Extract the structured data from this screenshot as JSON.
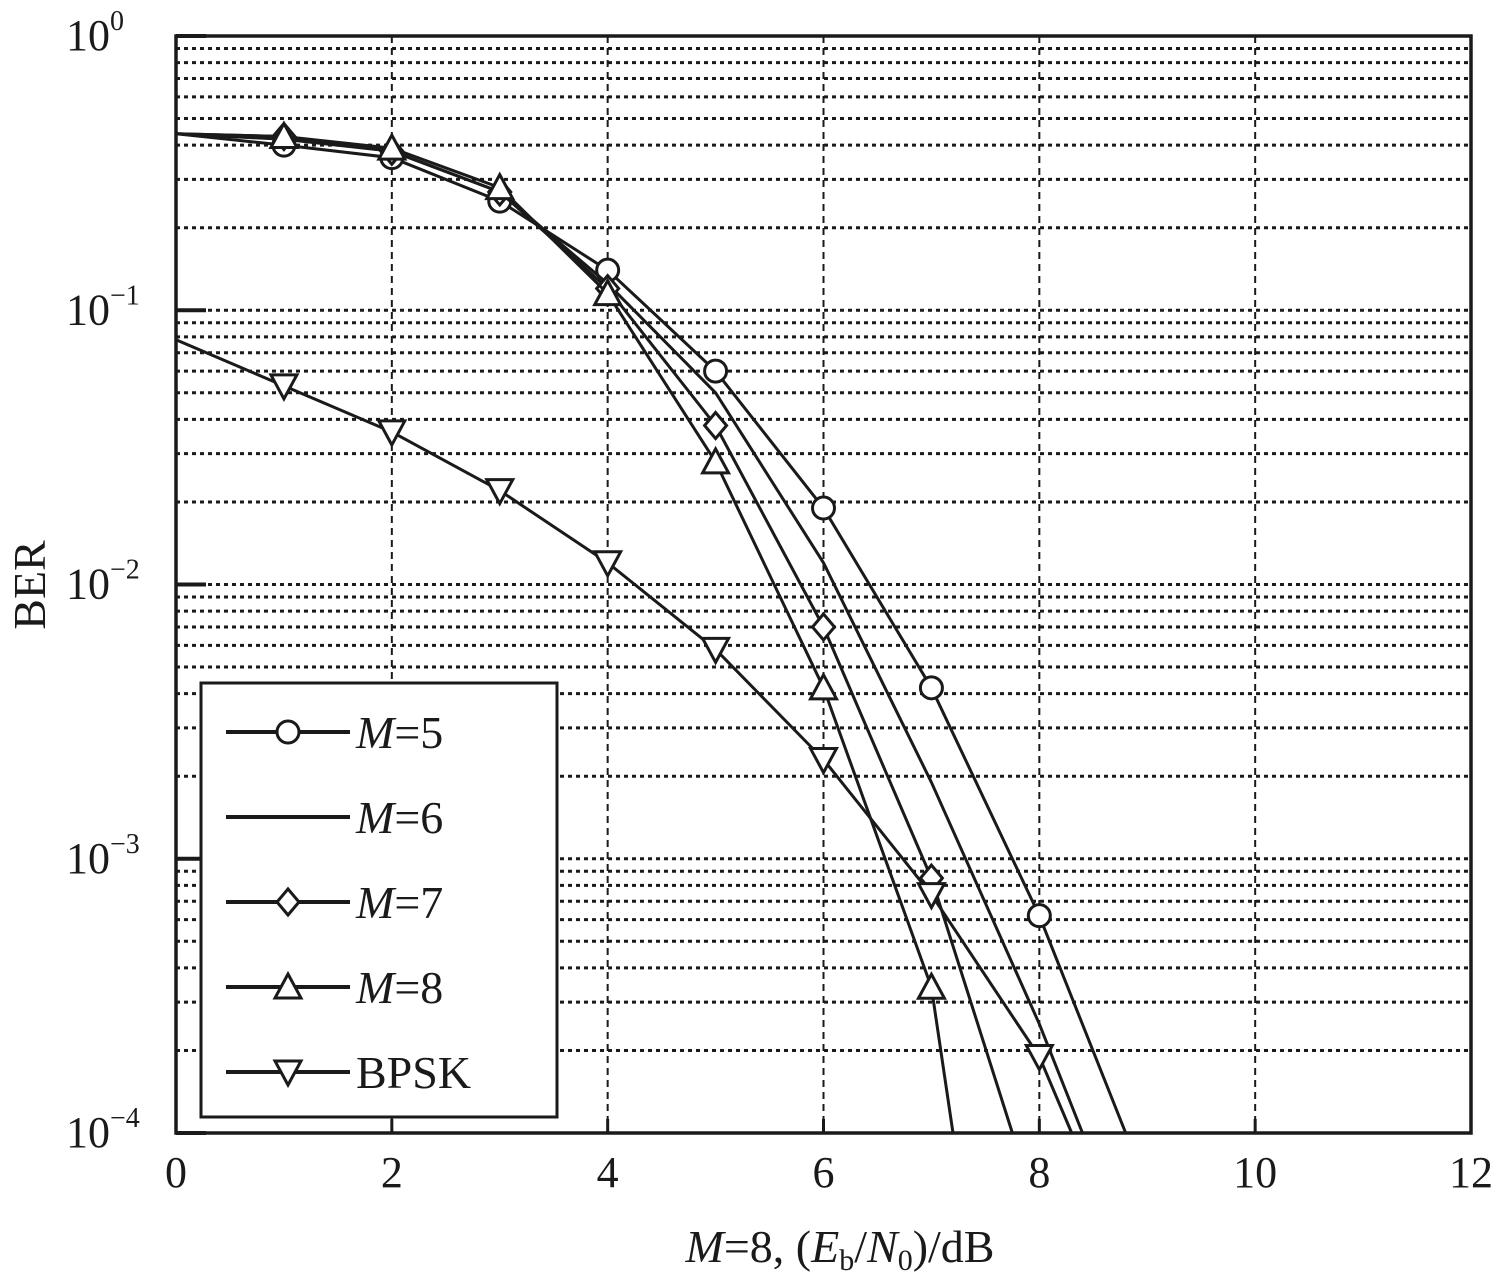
{
  "chart_data": {
    "type": "line",
    "xlabel": {
      "prefix_italic": "M",
      "prefix": "=8, (",
      "e": "E",
      "e_sub": "b",
      "slash": "/",
      "n": "N",
      "n_sub": "0",
      "suffix": ")/dB"
    },
    "ylabel": "BER",
    "xlim": [
      0,
      12
    ],
    "ylim": [
      0.0001,
      1
    ],
    "yscale": "log",
    "grid": true,
    "x_ticks": [
      0,
      2,
      4,
      6,
      8,
      10,
      12
    ],
    "x_tick_labels": [
      "0",
      "2",
      "4",
      "6",
      "8",
      "10",
      "12"
    ],
    "y_ticks": [
      1,
      0.1,
      0.01,
      0.001,
      0.0001
    ],
    "y_tick_labels": [
      {
        "base": "10",
        "exp": "0"
      },
      {
        "base": "10",
        "exp": "−1"
      },
      {
        "base": "10",
        "exp": "−2"
      },
      {
        "base": "10",
        "exp": "−3"
      },
      {
        "base": "10",
        "exp": "−4"
      }
    ],
    "legend_position": "bottom-left",
    "series": [
      {
        "name": "M=5",
        "legend_italic": "M",
        "legend_rest": "=5",
        "marker": "circle",
        "x": [
          0,
          1,
          2,
          3,
          4,
          5,
          6,
          7,
          8,
          8.8
        ],
        "y": [
          0.44,
          0.4,
          0.36,
          0.25,
          0.14,
          0.06,
          0.019,
          0.0042,
          0.00062,
          0.0001
        ],
        "marker_x": [
          1,
          2,
          3,
          4,
          5,
          6,
          7,
          8
        ]
      },
      {
        "name": "M=6",
        "legend_italic": "M",
        "legend_rest": "=6",
        "marker": "none",
        "x": [
          0,
          1,
          2,
          3,
          4,
          5,
          6,
          7,
          8,
          8.4
        ],
        "y": [
          0.44,
          0.42,
          0.38,
          0.27,
          0.125,
          0.05,
          0.012,
          0.0019,
          0.00025,
          0.0001
        ],
        "marker_x": []
      },
      {
        "name": "M=7",
        "legend_italic": "M",
        "legend_rest": "=7",
        "marker": "diamond",
        "x": [
          0,
          1,
          2,
          3,
          4,
          5,
          6,
          7,
          7.75
        ],
        "y": [
          0.44,
          0.43,
          0.38,
          0.27,
          0.12,
          0.038,
          0.007,
          0.00085,
          0.0001
        ],
        "marker_x": [
          1,
          2,
          3,
          4,
          5,
          6,
          7
        ]
      },
      {
        "name": "M=8",
        "legend_italic": "M",
        "legend_rest": "=8",
        "marker": "triangle-up",
        "x": [
          0,
          1,
          2,
          3,
          4,
          5,
          6,
          7,
          7.2
        ],
        "y": [
          0.44,
          0.43,
          0.39,
          0.28,
          0.115,
          0.028,
          0.0042,
          0.00034,
          0.0001
        ],
        "marker_x": [
          1,
          2,
          3,
          4,
          5,
          6,
          7
        ]
      },
      {
        "name": "BPSK",
        "legend_italic": "",
        "legend_rest": "BPSK",
        "marker": "triangle-down",
        "x": [
          0,
          1,
          2,
          3,
          4,
          5,
          6,
          7,
          8,
          8.3
        ],
        "y": [
          0.078,
          0.053,
          0.036,
          0.022,
          0.012,
          0.0058,
          0.0023,
          0.00074,
          0.00019,
          0.0001
        ],
        "marker_x": [
          1,
          2,
          3,
          4,
          5,
          6,
          7,
          8
        ]
      }
    ]
  }
}
